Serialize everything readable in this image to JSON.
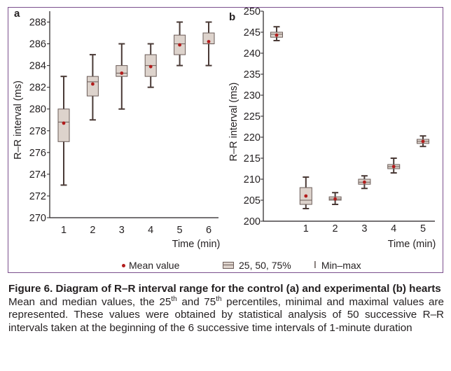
{
  "chart_data": [
    {
      "panel_label": "a",
      "type": "box",
      "xlabel": "Time (min)",
      "ylabel": "R–R interval (ms)",
      "ylim": [
        270,
        289
      ],
      "yticks": [
        270,
        272,
        274,
        276,
        278,
        280,
        282,
        284,
        286,
        288
      ],
      "categories": [
        "1",
        "2",
        "3",
        "4",
        "5",
        "6"
      ],
      "boxes": [
        {
          "min": 273,
          "q1": 277.0,
          "median": 278.8,
          "q3": 280.0,
          "max": 283,
          "mean": 278.7
        },
        {
          "min": 279,
          "q1": 281.2,
          "median": 282.5,
          "q3": 283.0,
          "max": 285,
          "mean": 282.3
        },
        {
          "min": 280,
          "q1": 283.0,
          "median": 283.3,
          "q3": 284.0,
          "max": 286,
          "mean": 283.3
        },
        {
          "min": 282,
          "q1": 283.0,
          "median": 284.0,
          "q3": 285.0,
          "max": 286,
          "mean": 283.9
        },
        {
          "min": 284,
          "q1": 285.0,
          "median": 286.0,
          "q3": 286.8,
          "max": 288,
          "mean": 285.9
        },
        {
          "min": 284,
          "q1": 286.0,
          "median": 286.0,
          "q3": 287.0,
          "max": 288,
          "mean": 286.2
        }
      ]
    },
    {
      "panel_label": "b",
      "type": "box",
      "xlabel": "Time (min)",
      "ylabel": "R–R interval (ms)",
      "ylim": [
        200,
        250
      ],
      "yticks": [
        200,
        205,
        210,
        215,
        220,
        225,
        230,
        235,
        240,
        245,
        250
      ],
      "categories": [
        "",
        "1",
        "2",
        "3",
        "4",
        "5"
      ],
      "boxes": [
        {
          "min": 243.0,
          "q1": 243.8,
          "median": 244.5,
          "q3": 245.0,
          "max": 246.3,
          "mean": 244.3
        },
        {
          "min": 203.0,
          "q1": 204.0,
          "median": 205.0,
          "q3": 208.0,
          "max": 210.5,
          "mean": 206.0
        },
        {
          "min": 204.0,
          "q1": 205.0,
          "median": 205.3,
          "q3": 205.8,
          "max": 206.8,
          "mean": 205.3
        },
        {
          "min": 207.8,
          "q1": 208.8,
          "median": 209.3,
          "q3": 210.0,
          "max": 210.8,
          "mean": 209.3
        },
        {
          "min": 211.5,
          "q1": 212.5,
          "median": 213.0,
          "q3": 213.5,
          "max": 215.0,
          "mean": 213.0
        },
        {
          "min": 217.8,
          "q1": 218.5,
          "median": 219.0,
          "q3": 219.5,
          "max": 220.3,
          "mean": 219.0
        }
      ]
    }
  ],
  "legend": {
    "mean_label": "Mean value",
    "box_label": "25, 50, 75%",
    "whisker_label": "Min–max"
  },
  "colors": {
    "frame": "#7b4f8c",
    "box_fill": "#ddd3cc",
    "box_stroke": "#6b5c58",
    "whisker": "#4a3a36",
    "mean_dot": "#b21c1c",
    "axis": "#231f20"
  },
  "caption": {
    "title": "Figure 6. Diagram of R–R interval range for the control (a) and experimental (b) hearts",
    "body_1": "Mean and median values, the 25",
    "sup_1": "th",
    "body_2": " and 75",
    "sup_2": "th",
    "body_3": " percentiles, minimal and maximal values are represented. These values were obtained by statistical analysis of 50 successive R–R intervals taken at the beginning of the 6 successive time intervals of 1-minute duration"
  }
}
